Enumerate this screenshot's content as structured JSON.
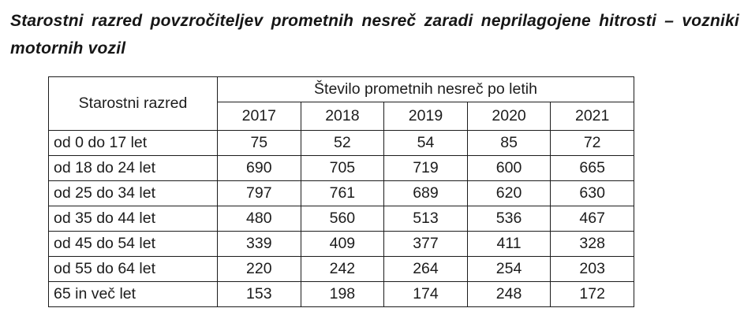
{
  "title": {
    "line1": "Starostni razred povzročiteljev prometnih nesreč zaradi neprilagojene hitrosti – vozniki",
    "line2": "motornih vozil",
    "full": "Starostni razred povzročiteljev prometnih nesreč zaradi neprilagojene hitrosti – vozniki motornih vozil"
  },
  "colors": {
    "text": "#1c1c1c",
    "border": "#1c1c1c",
    "background": "#ffffff"
  },
  "chart_data": {
    "type": "table",
    "title": "Starostni razred povzročiteljev prometnih nesreč zaradi neprilagojene hitrosti – vozniki motornih vozil",
    "row_header_label": "Starostni razred",
    "col_group_label": "Število prometnih nesreč po letih",
    "years": [
      "2017",
      "2018",
      "2019",
      "2020",
      "2021"
    ],
    "rows": [
      {
        "label": "od 0 do 17 let",
        "values": [
          75,
          52,
          54,
          85,
          72
        ]
      },
      {
        "label": "od 18 do 24 let",
        "values": [
          690,
          705,
          719,
          600,
          665
        ]
      },
      {
        "label": "od 25 do 34 let",
        "values": [
          797,
          761,
          689,
          620,
          630
        ]
      },
      {
        "label": "od 35 do 44 let",
        "values": [
          480,
          560,
          513,
          536,
          467
        ]
      },
      {
        "label": "od 45 do 54 let",
        "values": [
          339,
          409,
          377,
          411,
          328
        ]
      },
      {
        "label": "od 55 do 64 let",
        "values": [
          220,
          242,
          264,
          254,
          203
        ]
      },
      {
        "label": "65 in več let",
        "values": [
          153,
          198,
          174,
          248,
          172
        ]
      }
    ]
  }
}
